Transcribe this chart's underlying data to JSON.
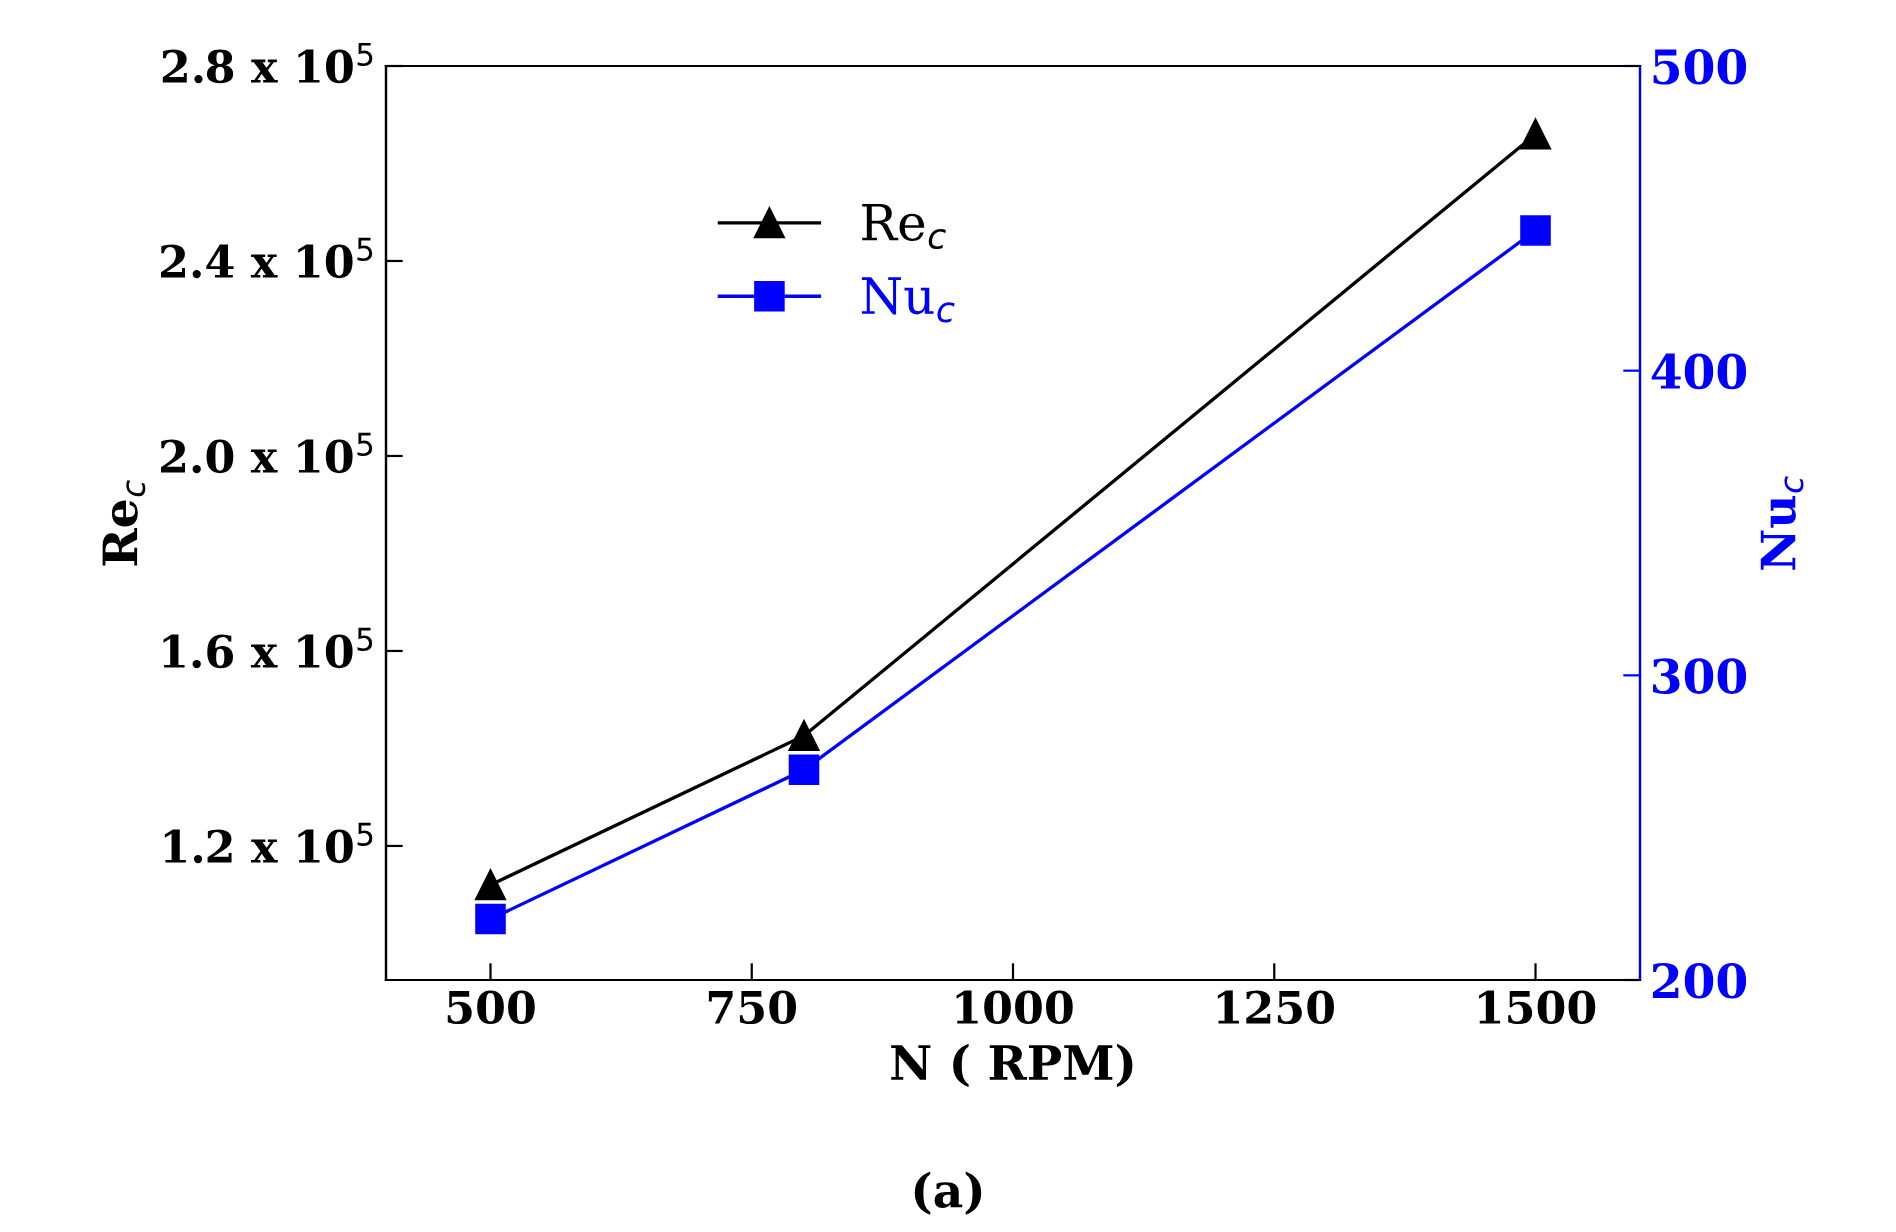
{
  "chart_data": {
    "type": "line",
    "xlabel": "N ( RPM)",
    "ylabel": "Re$_{c}$",
    "y2label": "Nu$_{c}$",
    "annotations": [
      "(a)"
    ],
    "x": [
      500,
      800,
      1500
    ],
    "series": [
      {
        "name": "Re$_{c}$",
        "color": "#000000",
        "values": [
          112000,
          142600,
          266000
        ],
        "marker": "triangle"
      },
      {
        "name": "Nu$_{c}$",
        "color": "#0000ff",
        "values": [
          220,
          269,
          446
        ],
        "marker": "square",
        "axis": "y2"
      }
    ],
    "xlim": [
      400,
      1600
    ],
    "xticks": [
      500,
      750,
      1000,
      1250,
      1500
    ],
    "ylim": [
      92500,
      280000
    ],
    "yticks": [
      {
        "value": 120000,
        "label": "1.2 x 10$^{5}$"
      },
      {
        "value": 160000,
        "label": "1.6 x 10$^{5}$"
      },
      {
        "value": 200000,
        "label": "2.0 x 10$^{5}$"
      },
      {
        "value": 240000,
        "label": "2.4 x 10$^{5}$"
      },
      {
        "value": 280000,
        "label": "2.8 x 10$^{5}$"
      }
    ],
    "y2lim": [
      200,
      500
    ],
    "y2ticks": [
      200,
      300,
      400,
      500
    ],
    "legend": "upper left",
    "grid": false,
    "line_style": "solid"
  }
}
